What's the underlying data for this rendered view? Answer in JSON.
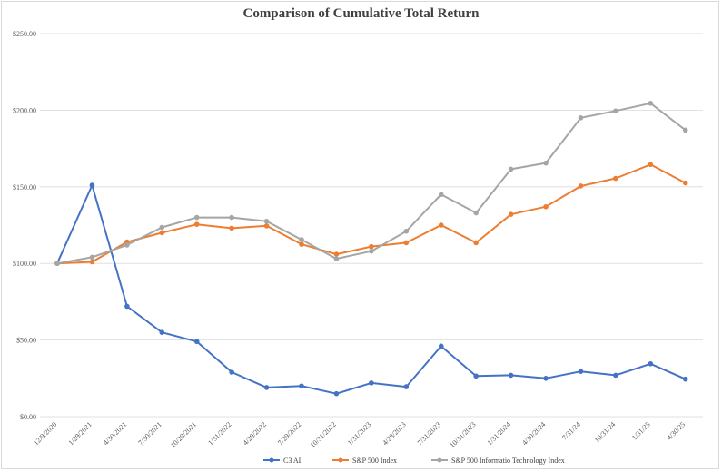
{
  "chart_data": {
    "type": "line",
    "title": "Comparison of Cumulative Total Return",
    "xlabel": "",
    "ylabel": "",
    "ylim": [
      0,
      250
    ],
    "y_ticks": [
      "$0.00",
      "$50.00",
      "$100.00",
      "$150.00",
      "$200.00",
      "$250.00"
    ],
    "y_tick_values": [
      0,
      50,
      100,
      150,
      200,
      250
    ],
    "categories": [
      "12/9/2020",
      "1/29/2021",
      "4/30/2021",
      "7/30/2021",
      "10/29/2021",
      "1/31/2022",
      "4/29/2022",
      "7/29/2022",
      "10/31/2022",
      "1/31/2023",
      "4/28/2023",
      "7/31/2023",
      "10/31/2023",
      "1/31/2024",
      "4/30/2024",
      "7/31/24",
      "10/31/24",
      "1/31/25",
      "4/30/25"
    ],
    "grid": "horizontal",
    "legend_position": "bottom",
    "series": [
      {
        "name": "C3 AI",
        "color": "#4472c4",
        "values": [
          100,
          151,
          72,
          55,
          49,
          29,
          19,
          20,
          15,
          22,
          19.5,
          46,
          26.5,
          27,
          25,
          29.5,
          27,
          34.5,
          24.5
        ]
      },
      {
        "name": "S&P 500 Index",
        "color": "#ed7d31",
        "values": [
          100,
          101,
          114,
          120,
          125.5,
          123,
          124.5,
          112.5,
          106,
          111,
          113.5,
          125,
          113.5,
          132,
          137,
          150.5,
          155.5,
          164.5,
          152.5
        ]
      },
      {
        "name": "S&P 500 Informatio Technology Index",
        "color": "#a5a5a5",
        "values": [
          100,
          104,
          112,
          123.5,
          130,
          130,
          127.5,
          115.5,
          103,
          108,
          121,
          145,
          133,
          161.5,
          165.5,
          195,
          199.5,
          204.5,
          187
        ]
      }
    ]
  }
}
